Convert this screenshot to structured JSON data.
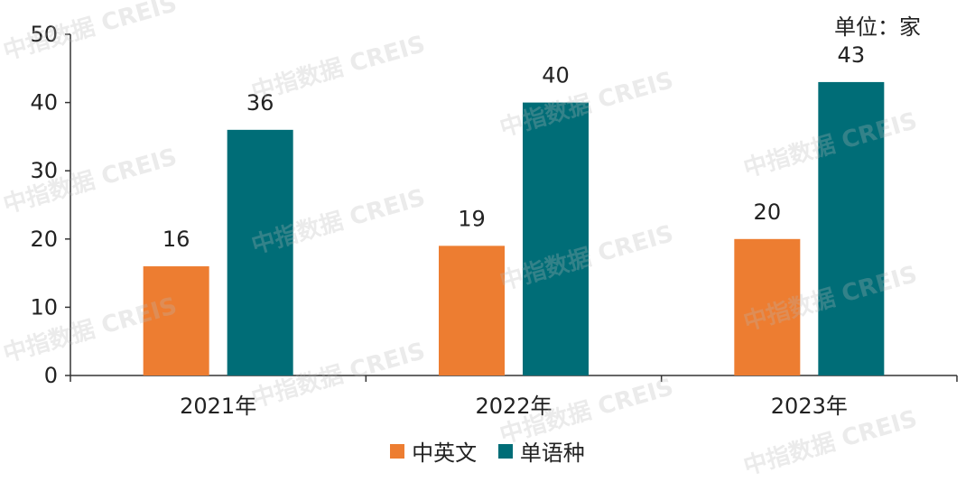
{
  "chart_data": {
    "type": "bar",
    "title": "",
    "xlabel": "",
    "ylabel": "",
    "unit_label": "单位：家",
    "categories": [
      "2021年",
      "2022年",
      "2023年"
    ],
    "series": [
      {
        "name": "中英文",
        "color": "#ED7D31",
        "values": [
          16,
          19,
          20
        ]
      },
      {
        "name": "单语种",
        "color": "#006D77",
        "values": [
          36,
          40,
          43
        ]
      }
    ],
    "ylim": [
      0,
      50
    ],
    "yticks": [
      0,
      10,
      20,
      30,
      40,
      50
    ],
    "grid": false,
    "legend_position": "bottom"
  },
  "watermark": "中指数据 CREIS"
}
